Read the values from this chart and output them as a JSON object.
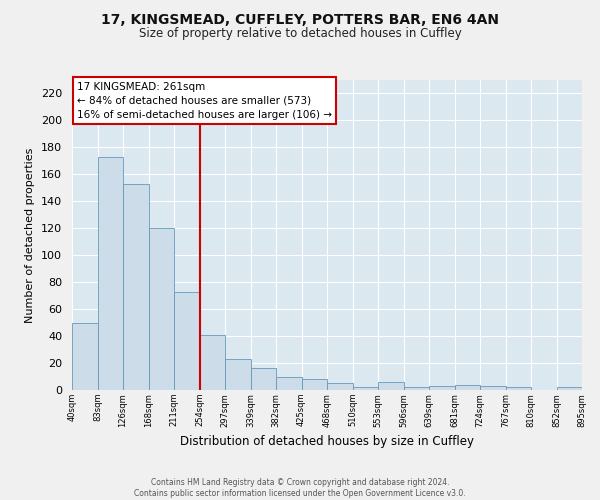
{
  "title": "17, KINGSMEAD, CUFFLEY, POTTERS BAR, EN6 4AN",
  "subtitle": "Size of property relative to detached houses in Cuffley",
  "xlabel": "Distribution of detached houses by size in Cuffley",
  "ylabel": "Number of detached properties",
  "bar_values": [
    50,
    173,
    153,
    120,
    73,
    41,
    23,
    16,
    10,
    8,
    5,
    2,
    6,
    2,
    3,
    4,
    3,
    2,
    0,
    2
  ],
  "bar_labels": [
    "40sqm",
    "83sqm",
    "126sqm",
    "168sqm",
    "211sqm",
    "254sqm",
    "297sqm",
    "339sqm",
    "382sqm",
    "425sqm",
    "468sqm",
    "510sqm",
    "553sqm",
    "596sqm",
    "639sqm",
    "681sqm",
    "724sqm",
    "767sqm",
    "810sqm",
    "852sqm",
    "895sqm"
  ],
  "bar_color": "#ccdce8",
  "bar_edge_color": "#6699bb",
  "vline_x_bar_index": 5,
  "annotation_title": "17 KINGSMEAD: 261sqm",
  "annotation_line1": "← 84% of detached houses are smaller (573)",
  "annotation_line2": "16% of semi-detached houses are larger (106) →",
  "annotation_box_color": "#cc0000",
  "vline_color": "#cc0000",
  "ylim": [
    0,
    230
  ],
  "yticks": [
    0,
    20,
    40,
    60,
    80,
    100,
    120,
    140,
    160,
    180,
    200,
    220
  ],
  "background_color": "#dce8f0",
  "grid_color": "#ffffff",
  "footer_line1": "Contains HM Land Registry data © Crown copyright and database right 2024.",
  "footer_line2": "Contains public sector information licensed under the Open Government Licence v3.0."
}
